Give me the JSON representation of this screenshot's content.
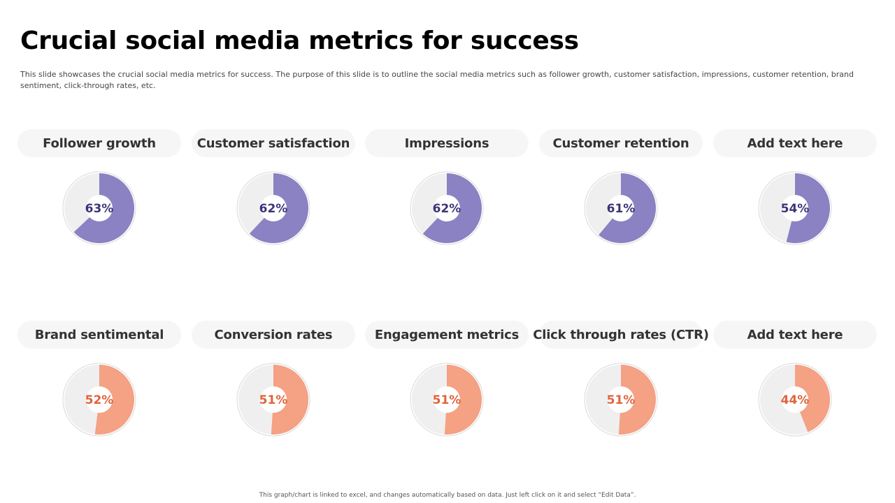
{
  "slide": {
    "title": "Crucial social media metrics for success",
    "description": "This slide showcases the crucial social media metrics for success. The purpose of this slide is to outline the social media metrics such as follower growth, customer satisfaction, impressions, customer retention, brand sentiment, click-through rates, etc.",
    "footer": "This graph/chart is linked to excel, and changes automatically based on data. Just left click on it and select “Edit Data”."
  },
  "colors": {
    "purple": "#8a82c2",
    "purple_text": "#3b3478",
    "salmon": "#f4a184",
    "salmon_text": "#e0643c",
    "track": "#efefef"
  },
  "chart_data": [
    {
      "type": "pie",
      "title": "Follower growth",
      "value": 63,
      "label": "63%",
      "color_key": "purple"
    },
    {
      "type": "pie",
      "title": "Customer satisfaction",
      "value": 62,
      "label": "62%",
      "color_key": "purple"
    },
    {
      "type": "pie",
      "title": "Impressions",
      "value": 62,
      "label": "62%",
      "color_key": "purple"
    },
    {
      "type": "pie",
      "title": "Customer retention",
      "value": 61,
      "label": "61%",
      "color_key": "purple"
    },
    {
      "type": "pie",
      "title": "Add text here",
      "value": 54,
      "label": "54%",
      "color_key": "purple"
    },
    {
      "type": "pie",
      "title": "Brand sentimental",
      "value": 52,
      "label": "52%",
      "color_key": "salmon"
    },
    {
      "type": "pie",
      "title": "Conversion rates",
      "value": 51,
      "label": "51%",
      "color_key": "salmon"
    },
    {
      "type": "pie",
      "title": "Engagement metrics",
      "value": 51,
      "label": "51%",
      "color_key": "salmon"
    },
    {
      "type": "pie",
      "title": "Click through rates (CTR)",
      "value": 51,
      "label": "51%",
      "color_key": "salmon"
    },
    {
      "type": "pie",
      "title": "Add text here",
      "value": 44,
      "label": "44%",
      "color_key": "salmon"
    }
  ]
}
